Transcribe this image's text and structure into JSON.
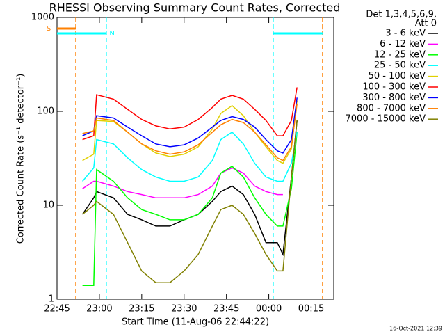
{
  "chart_data": {
    "type": "line",
    "title": "RHESSI Observing Summary Count Rates, Corrected",
    "x_label": "Start Time (11-Aug-06 22:44:22)",
    "y_label": "Corrected Count Rate (s⁻¹ detector⁻¹)",
    "legend_title": [
      "Det 1,3,4,5,6,9,",
      "Att 0"
    ],
    "footer": "16-Oct-2021 12:39",
    "log_y": true,
    "ylim": [
      1,
      1000
    ],
    "yticks": [
      1,
      10,
      100,
      1000
    ],
    "xlim": [
      0,
      98
    ],
    "xticks": [
      {
        "value": 0,
        "label": "22:45"
      },
      {
        "value": 15,
        "label": "23:00"
      },
      {
        "value": 30,
        "label": "23:15"
      },
      {
        "value": 45,
        "label": "23:30"
      },
      {
        "value": 60,
        "label": "23:45"
      },
      {
        "value": 75,
        "label": "00:00"
      },
      {
        "value": 90,
        "label": "00:15"
      }
    ],
    "x": [
      9,
      13,
      14,
      20,
      25,
      30,
      35,
      40,
      45,
      50,
      55,
      58,
      62,
      66,
      70,
      74,
      78,
      80,
      83,
      85
    ],
    "series": [
      {
        "name": "3 - 6 keV",
        "color": "#000000",
        "values": [
          8,
          12,
          14,
          12,
          8,
          7,
          6,
          6,
          7,
          8,
          11,
          14,
          16,
          13,
          8,
          4,
          4,
          3,
          20,
          80
        ]
      },
      {
        "name": "6 - 12 keV",
        "color": "#ff00ff",
        "values": [
          15,
          18,
          18,
          16,
          14,
          13,
          12,
          12,
          12,
          13,
          16,
          22,
          25,
          22,
          16,
          14,
          13,
          13,
          null,
          null
        ]
      },
      {
        "name": "12 - 25 keV",
        "color": "#00ff00",
        "values": [
          1.4,
          1.4,
          24,
          18,
          12,
          9,
          8,
          7,
          7,
          8,
          12,
          22,
          26,
          20,
          12,
          8,
          6,
          6,
          15,
          60
        ]
      },
      {
        "name": "25 - 50 keV",
        "color": "#00ffff",
        "values": [
          18,
          25,
          50,
          45,
          32,
          24,
          20,
          18,
          18,
          20,
          30,
          50,
          60,
          45,
          28,
          20,
          18,
          18,
          28,
          60
        ]
      },
      {
        "name": "50 - 100 keV",
        "color": "#e0d000",
        "values": [
          30,
          35,
          80,
          78,
          60,
          45,
          36,
          33,
          35,
          42,
          65,
          95,
          115,
          90,
          60,
          42,
          30,
          28,
          40,
          130
        ]
      },
      {
        "name": "100 - 300 keV",
        "color": "#ff0000",
        "values": [
          50,
          55,
          150,
          135,
          105,
          82,
          70,
          65,
          68,
          82,
          110,
          135,
          148,
          135,
          105,
          80,
          55,
          55,
          80,
          180
        ]
      },
      {
        "name": "300 - 800 keV",
        "color": "#0000ff",
        "values": [
          55,
          62,
          90,
          85,
          68,
          55,
          45,
          42,
          44,
          52,
          68,
          80,
          88,
          82,
          68,
          50,
          38,
          36,
          50,
          140
        ]
      },
      {
        "name": "800 - 7000 keV",
        "color": "#ff8000",
        "values": [
          58,
          62,
          85,
          80,
          60,
          45,
          38,
          35,
          37,
          44,
          60,
          72,
          82,
          76,
          60,
          44,
          32,
          30,
          42,
          120
        ]
      },
      {
        "name": "7000 - 15000 keV",
        "color": "#808000",
        "values": [
          8,
          10,
          11,
          8,
          4,
          2,
          1.5,
          1.5,
          2,
          3,
          6,
          9,
          10,
          8,
          5,
          3,
          2,
          2,
          20,
          80
        ]
      }
    ],
    "intervals": [
      {
        "label": "S",
        "color": "#ff8000",
        "start": 6.6,
        "end": 94
      },
      {
        "label": "N",
        "color": "#00ffff",
        "start": 17.5,
        "end": 76.6
      }
    ]
  }
}
